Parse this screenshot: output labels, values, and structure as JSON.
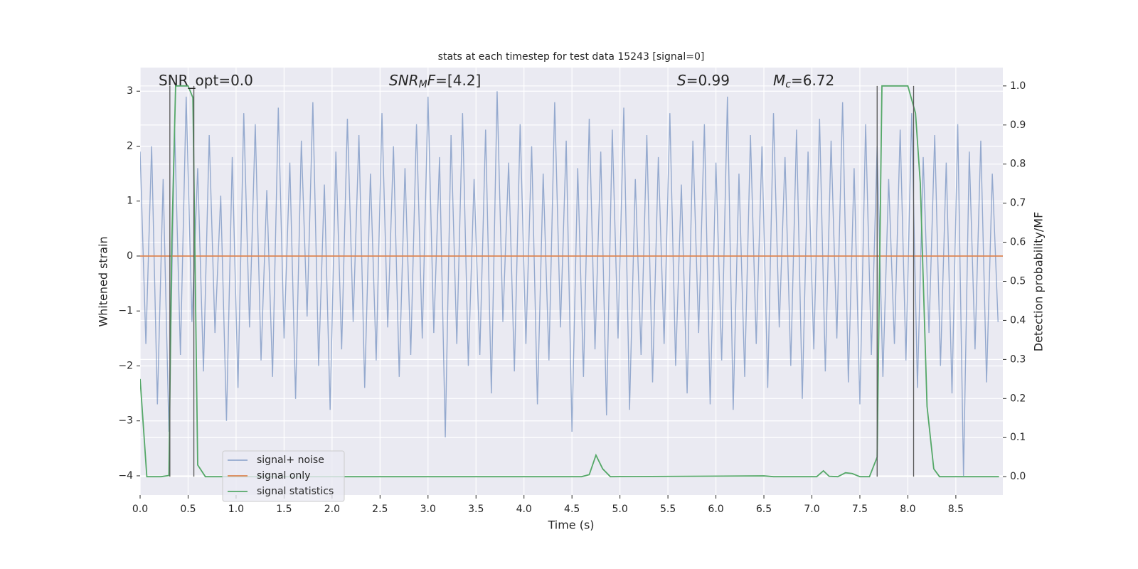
{
  "chart_data": {
    "type": "line",
    "title": "stats at each timestep for test data 15243 [signal=0]",
    "xlabel": "Time (s)",
    "ylabel": "Whitened strain",
    "y2label": "Detection probability/MF",
    "xlim": [
      0,
      8.99
    ],
    "ylim": [
      -4.35,
      3.43
    ],
    "y2lim": [
      -0.047,
      1.047
    ],
    "xticks": [
      {
        "value": 0,
        "label": "0.0"
      },
      0.5,
      {
        "value": 1,
        "label": "1.0"
      },
      1.5,
      {
        "value": 2,
        "label": "2.0"
      },
      2.5,
      {
        "value": 3,
        "label": "3.0"
      },
      3.5,
      {
        "value": 4,
        "label": "4.0"
      },
      4.5,
      {
        "value": 5,
        "label": "5.0"
      },
      5.5,
      {
        "value": 6,
        "label": "6.0"
      },
      6.5,
      {
        "value": 7,
        "label": "7.0"
      },
      7.5,
      {
        "value": 8,
        "label": "8.0"
      },
      8.5
    ],
    "yticks": [
      {
        "value": -4,
        "label": "−4"
      },
      {
        "value": -3,
        "label": "−3"
      },
      {
        "value": -2,
        "label": "−2"
      },
      {
        "value": -1,
        "label": "−1"
      },
      0,
      1,
      2,
      3
    ],
    "y2ticks": [
      {
        "value": 0,
        "label": "0.0"
      },
      0.1,
      0.2,
      0.3,
      0.4,
      0.5,
      0.6,
      0.7,
      0.8,
      0.9,
      {
        "value": 1,
        "label": "1.0"
      }
    ],
    "grid": true,
    "legend": "lower left",
    "series": [
      {
        "name": "signal+ noise",
        "color": "#4c72b0",
        "alpha": 0.55,
        "x": [
          0,
          0.06,
          0.12,
          0.18,
          0.24,
          0.3,
          0.36,
          0.42,
          0.48,
          0.54,
          0.6,
          0.66,
          0.72,
          0.78,
          0.84,
          0.9,
          0.96,
          1.02,
          1.08,
          1.14,
          1.2,
          1.26,
          1.32,
          1.38,
          1.44,
          1.5,
          1.56,
          1.62,
          1.68,
          1.74,
          1.8,
          1.86,
          1.92,
          1.98,
          2.04,
          2.1,
          2.16,
          2.22,
          2.28,
          2.34,
          2.4,
          2.46,
          2.52,
          2.58,
          2.64,
          2.7,
          2.76,
          2.82,
          2.88,
          2.94,
          3,
          3.06,
          3.12,
          3.18,
          3.24,
          3.3,
          3.36,
          3.42,
          3.48,
          3.54,
          3.6,
          3.66,
          3.72,
          3.78,
          3.84,
          3.9,
          3.96,
          4.02,
          4.08,
          4.14,
          4.2,
          4.26,
          4.32,
          4.38,
          4.44,
          4.5,
          4.56,
          4.62,
          4.68,
          4.74,
          4.8,
          4.86,
          4.92,
          4.98,
          5.04,
          5.1,
          5.16,
          5.22,
          5.28,
          5.34,
          5.4,
          5.46,
          5.52,
          5.58,
          5.64,
          5.7,
          5.76,
          5.82,
          5.88,
          5.94,
          6,
          6.06,
          6.12,
          6.18,
          6.24,
          6.3,
          6.36,
          6.42,
          6.48,
          6.54,
          6.6,
          6.66,
          6.72,
          6.78,
          6.84,
          6.9,
          6.96,
          7.02,
          7.08,
          7.14,
          7.2,
          7.26,
          7.32,
          7.38,
          7.44,
          7.5,
          7.56,
          7.62,
          7.68,
          7.74,
          7.8,
          7.86,
          7.92,
          7.98,
          8.04,
          8.1,
          8.16,
          8.22,
          8.28,
          8.34,
          8.4,
          8.46,
          8.52,
          8.58,
          8.64,
          8.7,
          8.76,
          8.82,
          8.88,
          8.94
        ],
        "values": [
          1.9,
          -1.6,
          2.0,
          -2.7,
          1.4,
          -3.2,
          2.3,
          -1.8,
          2.9,
          -1.2,
          1.6,
          -2.1,
          2.2,
          -1.4,
          1.1,
          -3.0,
          1.8,
          -2.4,
          2.6,
          -1.3,
          2.4,
          -1.9,
          1.2,
          -2.2,
          2.7,
          -1.5,
          1.7,
          -2.6,
          2.1,
          -1.1,
          2.8,
          -2.0,
          1.3,
          -2.8,
          1.9,
          -1.7,
          2.5,
          -1.2,
          2.2,
          -2.4,
          1.5,
          -1.9,
          2.6,
          -1.3,
          2.0,
          -2.2,
          1.6,
          -1.8,
          2.4,
          -1.5,
          2.9,
          -1.4,
          1.8,
          -3.3,
          2.2,
          -1.6,
          2.6,
          -2.0,
          1.4,
          -1.8,
          2.3,
          -2.5,
          3.0,
          -1.2,
          1.7,
          -2.1,
          2.4,
          -1.6,
          2.0,
          -2.7,
          1.5,
          -1.9,
          2.8,
          -1.3,
          2.1,
          -3.2,
          1.6,
          -2.2,
          2.5,
          -1.7,
          1.9,
          -2.9,
          2.3,
          -1.5,
          2.7,
          -2.8,
          1.4,
          -1.8,
          2.2,
          -2.3,
          1.8,
          -1.6,
          2.6,
          -2.0,
          1.3,
          -2.5,
          2.1,
          -1.4,
          2.4,
          -2.7,
          1.7,
          -1.9,
          2.9,
          -2.8,
          1.5,
          -2.2,
          2.2,
          -1.6,
          2.0,
          -2.4,
          2.6,
          -1.3,
          1.8,
          -2.0,
          2.3,
          -2.6,
          1.9,
          -1.7,
          2.5,
          -2.1,
          2.1,
          -1.5,
          2.8,
          -2.3,
          1.6,
          -2.7,
          2.4,
          -1.8,
          2.0,
          -2.2,
          1.4,
          -1.6,
          2.3,
          -1.9,
          2.6,
          -2.4,
          1.8,
          -1.4,
          2.2,
          -2.0,
          1.7,
          -2.5,
          2.4,
          -4.0,
          1.9,
          -1.7,
          2.1,
          -2.3,
          1.5,
          -1.2
        ]
      },
      {
        "name": "signal only",
        "color": "#dd8452",
        "alpha": 1,
        "x": [
          0,
          8.99
        ],
        "values": [
          0,
          0
        ]
      },
      {
        "name": "signal statistics",
        "color": "#55a868",
        "alpha": 1,
        "axis": "y2",
        "x": [
          0,
          0.07,
          0.15,
          0.22,
          0.3,
          0.33,
          0.37,
          0.45,
          0.5,
          0.55,
          0.6,
          0.68,
          4.6,
          4.68,
          4.75,
          4.82,
          4.9,
          6.5,
          6.6,
          7.05,
          7.12,
          7.18,
          7.27,
          7.35,
          7.42,
          7.5,
          7.6,
          7.68,
          7.73,
          7.8,
          8.0,
          8.08,
          8.13,
          8.2,
          8.27,
          8.33,
          8.95
        ],
        "values": [
          0.25,
          0,
          0,
          0,
          0.003,
          0.6,
          1.0,
          1.0,
          1.0,
          0.97,
          0.03,
          0,
          0,
          0.005,
          0.055,
          0.02,
          0,
          0.002,
          0,
          0,
          0.015,
          0.001,
          0,
          0.01,
          0.008,
          0,
          0,
          0.05,
          1.0,
          1.0,
          1.0,
          0.93,
          0.75,
          0.18,
          0.02,
          0,
          0
        ]
      }
    ],
    "vlines": {
      "x": [
        0.31,
        0.56,
        7.68,
        8.06
      ],
      "ymin": 0,
      "ymax": 1,
      "axis": "y2",
      "color": "#555555"
    },
    "annotations": [
      [
        {
          "text": "SNR_opt=0.0",
          "style": "normal"
        }
      ],
      [
        {
          "text": "SNR",
          "style": "italic"
        },
        {
          "text": "M",
          "style": "sub"
        },
        {
          "text": "F",
          "style": "italic"
        },
        {
          "text": "=[4.2]",
          "style": "normal"
        }
      ],
      [
        {
          "text": "S",
          "style": "italic"
        },
        {
          "text": "=0.99",
          "style": "normal"
        }
      ],
      [
        {
          "text": "M",
          "style": "italic"
        },
        {
          "text": "c",
          "style": "sub"
        },
        {
          "text": "=6.72",
          "style": "normal"
        }
      ]
    ]
  }
}
